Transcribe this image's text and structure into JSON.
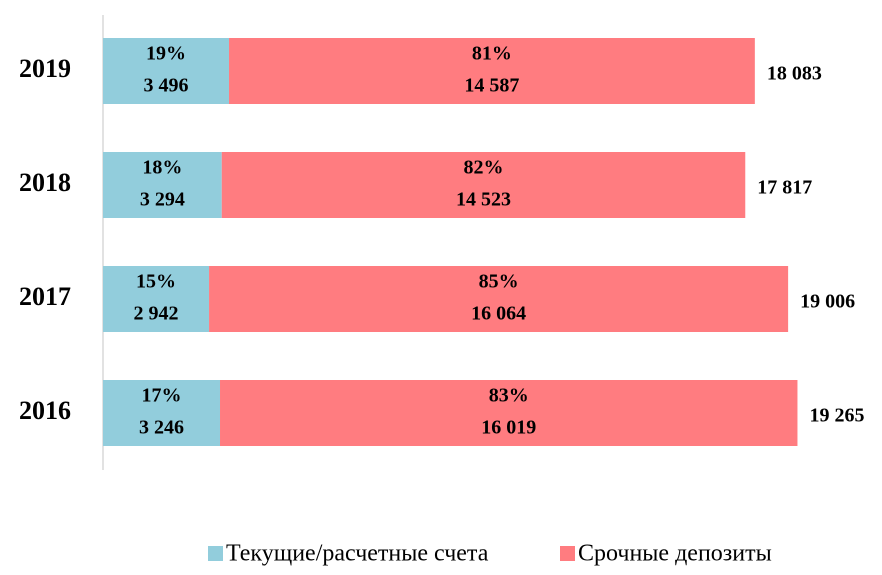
{
  "chart_data": {
    "type": "stacked_barh",
    "categories": [
      "2019",
      "2018",
      "2017",
      "2016"
    ],
    "series": [
      {
        "name": "Текущие/расчетные счета",
        "color": "#92cddc",
        "values": [
          3496,
          3294,
          2942,
          3246
        ],
        "value_labels": [
          "3 496",
          "3 294",
          "2 942",
          "3 246"
        ],
        "shares": [
          19,
          18,
          15,
          17
        ],
        "share_labels": [
          "19%",
          "18%",
          "15%",
          "17%"
        ]
      },
      {
        "name": "Срочные депозиты",
        "color": "#ff7c80",
        "values": [
          14587,
          14523,
          16064,
          16019
        ],
        "value_labels": [
          "14 587",
          "14 523",
          "16 064",
          "16 019"
        ],
        "shares": [
          81,
          82,
          85,
          83
        ],
        "share_labels": [
          "81%",
          "82%",
          "85%",
          "83%"
        ]
      }
    ],
    "totals": [
      18083,
      17817,
      19006,
      19265
    ],
    "total_labels": [
      "18 083",
      "17 817",
      "19 006",
      "19 265"
    ],
    "xlim": [
      0,
      21000
    ],
    "legend": "bottom"
  }
}
